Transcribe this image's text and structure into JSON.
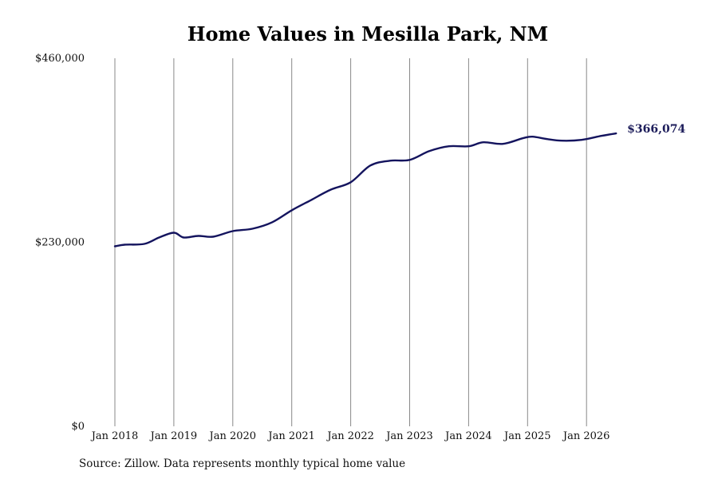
{
  "source_note": "Source: Zillow. Data represents monthly typical home value",
  "colors": {
    "line": "#14145e",
    "gridline": "#888888"
  },
  "chart_data": {
    "type": "line",
    "title": "Home Values in Mesilla Park, NM",
    "xlabel": "",
    "ylabel": "",
    "ylim": [
      0,
      460000
    ],
    "y_ticks": [
      0,
      230000,
      460000
    ],
    "y_tick_labels": [
      "$0",
      "$230,000",
      "$460,000"
    ],
    "x_ticks": [
      "2018-01",
      "2019-01",
      "2020-01",
      "2021-01",
      "2022-01",
      "2023-01",
      "2024-01",
      "2025-01",
      "2026-01"
    ],
    "x_tick_labels": [
      "Jan 2018",
      "Jan 2019",
      "Jan 2020",
      "Jan 2021",
      "Jan 2022",
      "Jan 2023",
      "Jan 2024",
      "Jan 2025",
      "Jan 2026"
    ],
    "grid": "vertical at x ticks",
    "end_label": "$366,074",
    "series": [
      {
        "x": [
          "2018-01",
          "2018-03",
          "2018-07",
          "2018-10",
          "2019-01",
          "2019-03",
          "2019-06",
          "2019-09",
          "2020-01",
          "2020-05",
          "2020-09",
          "2021-01",
          "2021-05",
          "2021-09",
          "2022-01",
          "2022-05",
          "2022-09",
          "2023-01",
          "2023-05",
          "2023-09",
          "2024-01",
          "2024-04",
          "2024-08",
          "2024-12",
          "2025-02",
          "2025-05",
          "2025-08",
          "2025-12",
          "2026-04",
          "2026-07"
        ],
        "y": [
          225000,
          227000,
          228000,
          236000,
          242000,
          236000,
          238000,
          237000,
          244000,
          247000,
          255000,
          270000,
          283000,
          296000,
          305000,
          326000,
          332000,
          333000,
          344000,
          350000,
          350000,
          355000,
          353000,
          360000,
          362000,
          359000,
          357000,
          358000,
          363000,
          366074
        ]
      }
    ]
  }
}
